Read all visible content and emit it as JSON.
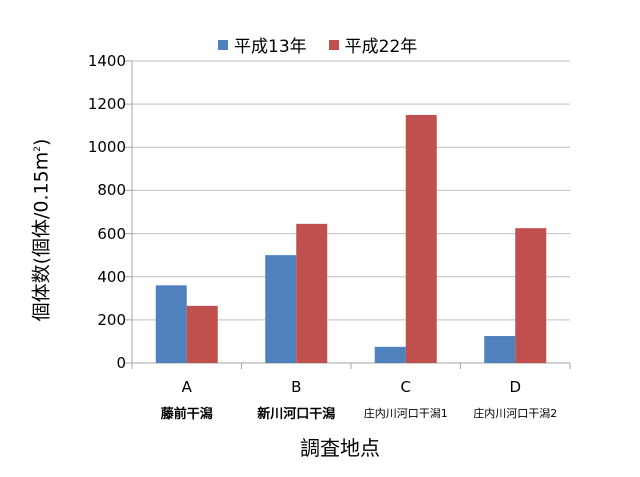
{
  "chart_data": {
    "type": "bar",
    "title": "",
    "xlabel": "調査地点",
    "ylabel": "個体数(個体/0.15m²)",
    "ylabel_parts": {
      "main": "個体数(個体/0.15m",
      "sup": "2",
      "close": ")"
    },
    "ylim": [
      0,
      1400
    ],
    "yticks": [
      0,
      200,
      400,
      600,
      800,
      1000,
      1200,
      1400
    ],
    "grid": true,
    "legend_position": "top",
    "categories": [
      "A",
      "B",
      "C",
      "D"
    ],
    "category_names": [
      "藤前干潟",
      "新川河口干潟",
      "庄内川河口干潟1",
      "庄内川河口干潟2"
    ],
    "series": [
      {
        "name": "平成13年",
        "color": "#4F81BD",
        "values": [
          360,
          500,
          75,
          125
        ]
      },
      {
        "name": "平成22年",
        "color": "#C0504D",
        "values": [
          265,
          645,
          1150,
          625
        ]
      }
    ]
  },
  "colors": {
    "grid": "#BFBFBF",
    "axis": "#A6A6A6"
  }
}
